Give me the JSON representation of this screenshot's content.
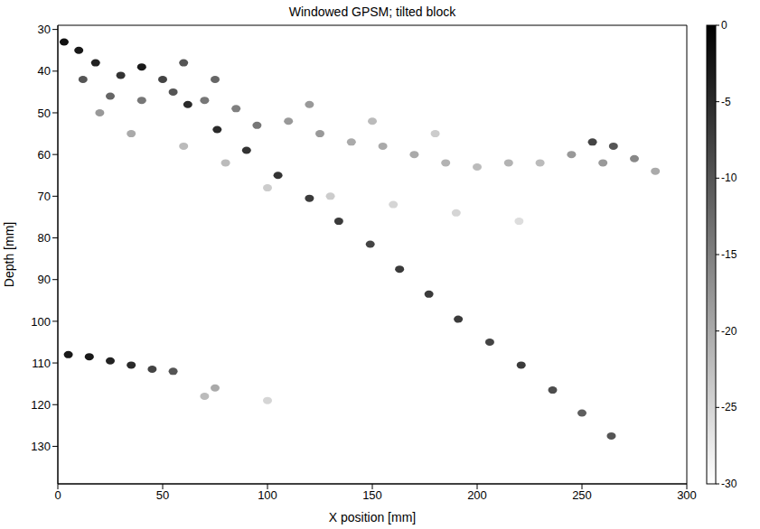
{
  "chart_data": {
    "type": "heatmap",
    "title": "Windowed GPSM; tilted block",
    "x_label": "X position [mm]",
    "y_label": "Depth [mm]",
    "xlim": [
      0,
      300
    ],
    "xticks": [
      0,
      50,
      100,
      150,
      200,
      250,
      300
    ],
    "ylim": [
      29,
      139
    ],
    "yticks": [
      30,
      40,
      50,
      60,
      70,
      80,
      90,
      100,
      110,
      120,
      130
    ],
    "colorbar": {
      "range": [
        -30,
        0
      ],
      "ticks": [
        0,
        -5,
        -10,
        -15,
        -20,
        -25,
        -30
      ]
    },
    "cells": [
      [
        62,
        48,
        -5
      ],
      [
        76,
        54,
        -5
      ],
      [
        90,
        59,
        -6
      ],
      [
        105,
        65,
        -6
      ],
      [
        120,
        70.5,
        -7
      ],
      [
        134,
        76,
        -7
      ],
      [
        149,
        81.5,
        -8
      ],
      [
        163,
        87.5,
        -7
      ],
      [
        177,
        93.5,
        -7
      ],
      [
        191,
        99.5,
        -7
      ],
      [
        206,
        105,
        -8
      ],
      [
        221,
        110.5,
        -7
      ],
      [
        236,
        116.5,
        -9
      ],
      [
        250,
        122,
        -11
      ],
      [
        264,
        127.5,
        -10
      ],
      [
        3,
        33,
        -2
      ],
      [
        10,
        35,
        -3
      ],
      [
        18,
        38,
        -4
      ],
      [
        30,
        41,
        -6
      ],
      [
        40,
        39,
        -3
      ],
      [
        50,
        42,
        -8
      ],
      [
        12,
        42,
        -10
      ],
      [
        25,
        46,
        -12
      ],
      [
        40,
        47,
        -14
      ],
      [
        55,
        45,
        -10
      ],
      [
        70,
        47,
        -14
      ],
      [
        85,
        49,
        -15
      ],
      [
        95,
        53,
        -14
      ],
      [
        110,
        52,
        -18
      ],
      [
        125,
        55,
        -18
      ],
      [
        140,
        57,
        -20
      ],
      [
        155,
        58,
        -20
      ],
      [
        170,
        60,
        -20
      ],
      [
        185,
        62,
        -21
      ],
      [
        200,
        63,
        -22
      ],
      [
        215,
        62,
        -21
      ],
      [
        230,
        62,
        -22
      ],
      [
        245,
        60,
        -18
      ],
      [
        260,
        62,
        -18
      ],
      [
        275,
        61,
        -16
      ],
      [
        285,
        64,
        -20
      ],
      [
        20,
        50,
        -18
      ],
      [
        35,
        55,
        -20
      ],
      [
        60,
        58,
        -22
      ],
      [
        80,
        62,
        -22
      ],
      [
        100,
        68,
        -24
      ],
      [
        130,
        70,
        -24
      ],
      [
        160,
        72,
        -25
      ],
      [
        190,
        74,
        -25
      ],
      [
        220,
        76,
        -26
      ],
      [
        60,
        38,
        -10
      ],
      [
        75,
        42,
        -12
      ],
      [
        120,
        48,
        -18
      ],
      [
        150,
        52,
        -22
      ],
      [
        180,
        55,
        -24
      ],
      [
        255,
        57,
        -8
      ],
      [
        265,
        58,
        -10
      ],
      [
        5,
        108,
        -3
      ],
      [
        15,
        108.5,
        -3
      ],
      [
        25,
        109.5,
        -4
      ],
      [
        35,
        110.5,
        -5
      ],
      [
        45,
        111.5,
        -8
      ],
      [
        55,
        112,
        -10
      ],
      [
        70,
        118,
        -22
      ],
      [
        75,
        116,
        -20
      ],
      [
        100,
        119,
        -25
      ]
    ]
  }
}
